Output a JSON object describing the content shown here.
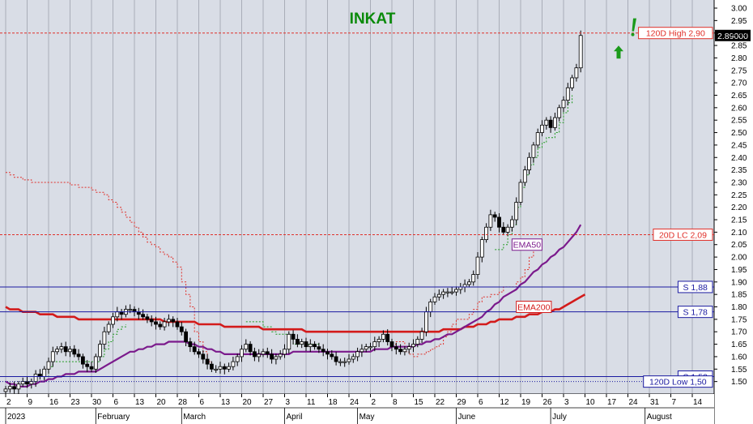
{
  "chart_data": {
    "type": "candlestick",
    "title": "INKAT",
    "colors": {
      "title": "#0a8a0a",
      "background": "#d9dde6",
      "ema50": "#7b1a8c",
      "ema200": "#d31b1b",
      "support": "#1a1aa0",
      "resistance_dash": "#e0302a",
      "trailing_green": "#1f9a1f",
      "trailing_red": "#e0302a",
      "candle": "#000000",
      "arrow": "#1b9a1b"
    },
    "ylim": [
      1.45,
      3.0
    ],
    "yticks": [
      "1.50",
      "1.55",
      "1.60",
      "1.65",
      "1.70",
      "1.75",
      "1.80",
      "1.85",
      "1.90",
      "1.95",
      "2.00",
      "2.05",
      "2.10",
      "2.15",
      "2.20",
      "2.25",
      "2.30",
      "2.35",
      "2.40",
      "2.45",
      "2.50",
      "2.55",
      "2.60",
      "2.65",
      "2.70",
      "2.75",
      "2.80",
      "2.85",
      "2.90",
      "2.95",
      "3.00"
    ],
    "xtick_days": [
      "2",
      "9",
      "16",
      "23",
      "30",
      "6",
      "13",
      "20",
      "28",
      "6",
      "13",
      "20",
      "27",
      "3",
      "11",
      "18",
      "24",
      "2",
      "8",
      "15",
      "22",
      "29",
      "6",
      "12",
      "19",
      "26",
      "3",
      "10",
      "17",
      "24",
      "31",
      "7",
      "14"
    ],
    "xtick_index": [
      0,
      5,
      10,
      15,
      20,
      25,
      30,
      35,
      40,
      45,
      50,
      55,
      60,
      65,
      70,
      75,
      80,
      85,
      90,
      95,
      100,
      105,
      110,
      115,
      120,
      125,
      130,
      135,
      140,
      145,
      150,
      155,
      160
    ],
    "months": [
      {
        "label": "2023",
        "index": 0
      },
      {
        "label": "February",
        "index": 21
      },
      {
        "label": "March",
        "index": 41
      },
      {
        "label": "April",
        "index": 65
      },
      {
        "label": "May",
        "index": 82
      },
      {
        "label": "June",
        "index": 105
      },
      {
        "label": "July",
        "index": 127
      },
      {
        "label": "August",
        "index": 149
      }
    ],
    "closes": [
      1.47,
      1.48,
      1.47,
      1.49,
      1.5,
      1.49,
      1.5,
      1.53,
      1.52,
      1.55,
      1.58,
      1.62,
      1.63,
      1.64,
      1.62,
      1.63,
      1.61,
      1.6,
      1.57,
      1.56,
      1.55,
      1.6,
      1.65,
      1.7,
      1.73,
      1.76,
      1.78,
      1.77,
      1.79,
      1.79,
      1.78,
      1.77,
      1.76,
      1.75,
      1.74,
      1.73,
      1.72,
      1.74,
      1.75,
      1.74,
      1.72,
      1.7,
      1.66,
      1.64,
      1.62,
      1.61,
      1.59,
      1.57,
      1.55,
      1.55,
      1.56,
      1.55,
      1.56,
      1.58,
      1.6,
      1.63,
      1.65,
      1.62,
      1.6,
      1.61,
      1.62,
      1.61,
      1.59,
      1.6,
      1.61,
      1.63,
      1.69,
      1.67,
      1.65,
      1.66,
      1.64,
      1.65,
      1.64,
      1.63,
      1.62,
      1.61,
      1.6,
      1.58,
      1.58,
      1.58,
      1.59,
      1.6,
      1.62,
      1.63,
      1.64,
      1.64,
      1.66,
      1.67,
      1.69,
      1.66,
      1.64,
      1.63,
      1.62,
      1.63,
      1.64,
      1.65,
      1.67,
      1.7,
      1.78,
      1.82,
      1.84,
      1.85,
      1.86,
      1.86,
      1.86,
      1.87,
      1.88,
      1.89,
      1.9,
      1.93,
      2.0,
      2.07,
      2.12,
      2.17,
      2.16,
      2.12,
      2.1,
      2.12,
      2.15,
      2.22,
      2.3,
      2.35,
      2.4,
      2.45,
      2.5,
      2.53,
      2.55,
      2.52,
      2.56,
      2.6,
      2.63,
      2.68,
      2.72,
      2.76,
      2.89
    ],
    "ema50": [
      1.5,
      1.49,
      1.49,
      1.48,
      1.48,
      1.48,
      1.49,
      1.49,
      1.5,
      1.5,
      1.51,
      1.51,
      1.52,
      1.52,
      1.53,
      1.53,
      1.53,
      1.54,
      1.54,
      1.54,
      1.54,
      1.54,
      1.55,
      1.56,
      1.57,
      1.58,
      1.59,
      1.6,
      1.61,
      1.62,
      1.62,
      1.63,
      1.63,
      1.64,
      1.64,
      1.65,
      1.65,
      1.65,
      1.66,
      1.66,
      1.66,
      1.66,
      1.66,
      1.65,
      1.65,
      1.64,
      1.64,
      1.63,
      1.63,
      1.62,
      1.62,
      1.61,
      1.61,
      1.61,
      1.61,
      1.61,
      1.61,
      1.61,
      1.61,
      1.61,
      1.61,
      1.61,
      1.61,
      1.61,
      1.61,
      1.61,
      1.61,
      1.62,
      1.62,
      1.62,
      1.62,
      1.62,
      1.62,
      1.62,
      1.62,
      1.62,
      1.62,
      1.62,
      1.62,
      1.62,
      1.62,
      1.62,
      1.62,
      1.62,
      1.62,
      1.62,
      1.63,
      1.63,
      1.63,
      1.63,
      1.64,
      1.64,
      1.64,
      1.64,
      1.64,
      1.64,
      1.65,
      1.65,
      1.66,
      1.66,
      1.67,
      1.67,
      1.68,
      1.69,
      1.69,
      1.7,
      1.71,
      1.72,
      1.73,
      1.74,
      1.75,
      1.76,
      1.78,
      1.79,
      1.81,
      1.82,
      1.84,
      1.85,
      1.86,
      1.87,
      1.89,
      1.9,
      1.92,
      1.94,
      1.95,
      1.97,
      1.98,
      2.0,
      2.01,
      2.03,
      2.04,
      2.06,
      2.08,
      2.1,
      2.13
    ],
    "ema200": [
      1.8,
      1.79,
      1.79,
      1.79,
      1.78,
      1.78,
      1.78,
      1.78,
      1.77,
      1.77,
      1.77,
      1.77,
      1.76,
      1.76,
      1.76,
      1.76,
      1.76,
      1.75,
      1.75,
      1.75,
      1.75,
      1.75,
      1.75,
      1.75,
      1.75,
      1.75,
      1.75,
      1.75,
      1.75,
      1.75,
      1.75,
      1.75,
      1.75,
      1.75,
      1.75,
      1.75,
      1.75,
      1.74,
      1.74,
      1.74,
      1.74,
      1.74,
      1.74,
      1.74,
      1.74,
      1.73,
      1.73,
      1.73,
      1.73,
      1.73,
      1.73,
      1.72,
      1.72,
      1.72,
      1.72,
      1.72,
      1.72,
      1.72,
      1.72,
      1.72,
      1.71,
      1.71,
      1.71,
      1.71,
      1.71,
      1.71,
      1.71,
      1.71,
      1.71,
      1.71,
      1.7,
      1.7,
      1.7,
      1.7,
      1.7,
      1.7,
      1.7,
      1.7,
      1.7,
      1.7,
      1.7,
      1.7,
      1.7,
      1.7,
      1.7,
      1.7,
      1.7,
      1.7,
      1.7,
      1.7,
      1.7,
      1.7,
      1.7,
      1.7,
      1.7,
      1.7,
      1.7,
      1.7,
      1.7,
      1.7,
      1.7,
      1.7,
      1.71,
      1.71,
      1.71,
      1.71,
      1.71,
      1.72,
      1.72,
      1.72,
      1.73,
      1.73,
      1.73,
      1.74,
      1.74,
      1.75,
      1.75,
      1.75,
      1.75,
      1.76,
      1.76,
      1.76,
      1.77,
      1.77,
      1.77,
      1.78,
      1.78,
      1.78,
      1.79,
      1.79,
      1.8,
      1.81,
      1.82,
      1.83,
      1.84,
      1.85
    ],
    "trailing_green": [
      null,
      null,
      null,
      null,
      null,
      null,
      null,
      null,
      1.5,
      1.52,
      1.56,
      1.58,
      1.58,
      1.58,
      1.58,
      1.58,
      1.58,
      1.58,
      1.58,
      1.58,
      1.58,
      1.58,
      1.6,
      1.63,
      1.66,
      1.69,
      1.71,
      1.72,
      1.73,
      null,
      null,
      null,
      null,
      null,
      null,
      null,
      null,
      null,
      null,
      null,
      null,
      null,
      null,
      null,
      null,
      null,
      null,
      null,
      null,
      null,
      null,
      null,
      null,
      null,
      null,
      null,
      1.74,
      1.74,
      1.74,
      1.74,
      1.72,
      1.72,
      1.7,
      1.69,
      1.69,
      1.69,
      1.69,
      1.65,
      1.65,
      1.65,
      1.65,
      1.65,
      1.65,
      1.65,
      null,
      null,
      null,
      null,
      null,
      null,
      null,
      null,
      null,
      null,
      null,
      null,
      null,
      null,
      null,
      null,
      null,
      null,
      null,
      null,
      null,
      null,
      null,
      null,
      null,
      null,
      null,
      null,
      null,
      null,
      null,
      null,
      null,
      null,
      null,
      null,
      null,
      null,
      null,
      null,
      2.03,
      2.03,
      2.05,
      2.09,
      2.13,
      2.2,
      2.28,
      2.33,
      2.37,
      2.4,
      2.44,
      2.46,
      2.48,
      2.48,
      2.5,
      2.54,
      2.58,
      2.62,
      2.65
    ],
    "trailing_red": [
      2.34,
      2.33,
      2.32,
      2.32,
      2.31,
      2.31,
      2.3,
      2.3,
      2.3,
      2.3,
      2.3,
      2.3,
      2.3,
      2.3,
      2.3,
      2.29,
      2.29,
      2.28,
      2.28,
      2.28,
      2.27,
      2.26,
      2.26,
      2.25,
      2.23,
      2.22,
      2.2,
      2.18,
      2.16,
      2.14,
      2.12,
      2.1,
      2.08,
      2.06,
      2.05,
      2.04,
      2.02,
      2.01,
      2.0,
      1.98,
      1.96,
      1.9,
      1.85,
      1.8,
      1.7,
      1.66,
      1.62,
      1.58,
      1.55,
      null,
      null,
      null,
      null,
      null,
      null,
      null,
      null,
      null,
      null,
      null,
      null,
      null,
      null,
      null,
      null,
      null,
      null,
      null,
      null,
      null,
      null,
      null,
      null,
      null,
      null,
      null,
      null,
      null,
      null,
      null,
      null,
      null,
      null,
      null,
      null,
      null,
      null,
      null,
      null,
      null,
      1.65,
      1.66,
      1.66,
      1.62,
      1.61,
      1.6,
      1.61,
      1.61,
      1.62,
      1.63,
      1.64,
      1.65,
      1.68,
      1.7,
      1.73,
      1.75,
      1.75,
      1.75,
      1.77,
      1.79,
      1.82,
      1.84,
      1.84,
      1.85,
      1.85,
      1.86,
      1.88,
      1.88,
      1.88,
      1.9,
      1.92,
      1.95,
      2.0,
      2.04
    ],
    "levels": [
      {
        "name": "120D High",
        "value": 2.9,
        "label": "120D High 2,90",
        "style": "dash-red"
      },
      {
        "name": "20D LC",
        "value": 2.09,
        "label": "20D LC 2,09",
        "style": "dash-red"
      },
      {
        "name": "S",
        "value": 1.88,
        "label": "S 1,88",
        "style": "solid-blue"
      },
      {
        "name": "S",
        "value": 1.78,
        "label": "S 1,78",
        "style": "solid-blue"
      },
      {
        "name": "S",
        "value": 1.52,
        "label": "S 1,52",
        "style": "solid-blue"
      },
      {
        "name": "120D Low",
        "value": 1.5,
        "label": "120D Low 1,50",
        "style": "dot-blue"
      }
    ],
    "series_labels": [
      {
        "text": "EMA50",
        "value": 2.05,
        "index": 118
      },
      {
        "text": "EMA200",
        "value": 1.8,
        "index": 119
      }
    ],
    "last_price_label": "2.89000",
    "last_price": 2.89
  }
}
